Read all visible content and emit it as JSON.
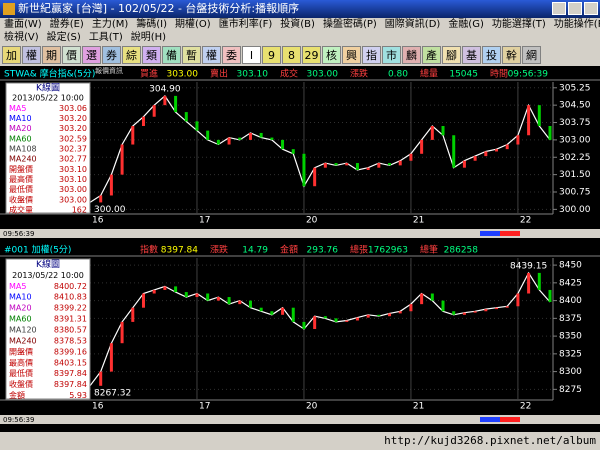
{
  "window": {
    "title": "新世紀贏家 [台灣] - 102/05/22 - 台盤技術分析:播報順序"
  },
  "menu": [
    "畫面(W)",
    "證券(E)",
    "主力(M)",
    "籌碼(I)",
    "期權(O)",
    "匯市利率(F)",
    "投資(B)",
    "操盤密碼(P)",
    "國際資訊(D)",
    "金融(G)",
    "功能選擇(T)",
    "功能操作(R)"
  ],
  "menu2": [
    "檢視(V)",
    "設定(S)",
    "工具(T)",
    "說明(H)"
  ],
  "toolbar": [
    "加",
    "權",
    "期",
    "價",
    "選",
    "券",
    "綜",
    "類",
    "備",
    "暫",
    "權",
    "委",
    "I",
    "9",
    "8",
    "29",
    "核",
    "興",
    "指",
    "市",
    "麟",
    "產",
    "腳",
    "基",
    "投",
    "幹",
    "網"
  ],
  "toolbar_caption": "報價資訊",
  "charts": [
    {
      "symbol": "STWA& 摩台指&(5分)",
      "quote": [
        {
          "label": "買進",
          "value": "303.00"
        },
        {
          "label": "賣出",
          "value": "303.10"
        },
        {
          "label": "成交",
          "value": "303.00"
        },
        {
          "label": "漲跌",
          "value": "0.80"
        },
        {
          "label": "總量",
          "value": "15045"
        },
        {
          "label": "時間",
          "value": "09:56:39"
        }
      ],
      "panel_title": "K線圖",
      "panel_date": "2013/05/22 10:00",
      "indicators": [
        {
          "label": "MA5",
          "value": "303.06"
        },
        {
          "label": "MA10",
          "value": "303.20"
        },
        {
          "label": "MA20",
          "value": "303.20"
        },
        {
          "label": "MA60",
          "value": "302.59"
        },
        {
          "label": "MA108",
          "value": "302.37"
        },
        {
          "label": "MA240",
          "value": "302.77"
        },
        {
          "label": "開盤價",
          "value": "303.10"
        },
        {
          "label": "最高價",
          "value": "303.10"
        },
        {
          "label": "最低價",
          "value": "303.00"
        },
        {
          "label": "收盤價",
          "value": "303.00"
        },
        {
          "label": "成交量",
          "value": "162"
        }
      ],
      "high_label": "304.90",
      "low_label": "300.00",
      "categories": [
        "16",
        null,
        null,
        null,
        null,
        null,
        null,
        null,
        null,
        null,
        "17",
        null,
        null,
        null,
        null,
        null,
        null,
        null,
        null,
        null,
        "20",
        null,
        null,
        null,
        null,
        null,
        null,
        null,
        null,
        null,
        "21",
        null,
        null,
        null,
        null,
        null,
        null,
        null,
        null,
        null,
        "22",
        null,
        null,
        null
      ],
      "values": [
        300.3,
        300.6,
        301.5,
        302.8,
        303.6,
        304.0,
        304.5,
        304.9,
        304.2,
        303.8,
        303.4,
        303.0,
        302.8,
        303.1,
        303.0,
        303.3,
        303.1,
        303.0,
        302.6,
        302.4,
        301.0,
        301.8,
        302.0,
        301.9,
        302.0,
        301.7,
        301.8,
        302.0,
        301.9,
        302.1,
        302.4,
        303.0,
        303.6,
        303.2,
        301.8,
        302.1,
        302.3,
        302.5,
        302.6,
        302.8,
        303.2,
        304.5,
        303.6,
        303.0
      ],
      "ylim": [
        299.8,
        305.5
      ],
      "yticks": [
        305.25,
        {
          "value": 304.5,
          "label": "304.50"
        },
        303.75,
        {
          "value": 303,
          "label": "303.00"
        },
        302.25,
        {
          "value": 301.5,
          "label": "301.50"
        },
        300.75,
        {
          "value": 300,
          "label": "300.00"
        }
      ]
    },
    {
      "symbol": "#001 加權(5分)",
      "quote": [
        {
          "label": "指數",
          "value": "8397.84"
        },
        {
          "label": "漲跌",
          "value": "14.79"
        },
        {
          "label": "金額",
          "value": "293.76"
        },
        {
          "label": "總張",
          "value": "1762963"
        },
        {
          "label": "總筆",
          "value": "286258"
        }
      ],
      "panel_title": "K線圖",
      "panel_date": "2013/05/22 10:00",
      "indicators": [
        {
          "label": "MA5",
          "value": "8400.72"
        },
        {
          "label": "MA10",
          "value": "8410.83"
        },
        {
          "label": "MA20",
          "value": "8399.22"
        },
        {
          "label": "MA60",
          "value": "8391.31"
        },
        {
          "label": "MA120",
          "value": "8380.57"
        },
        {
          "label": "MA240",
          "value": "8378.53"
        },
        {
          "label": "開盤價",
          "value": "8399.16"
        },
        {
          "label": "最高價",
          "value": "8403.15"
        },
        {
          "label": "最低價",
          "value": "8397.84"
        },
        {
          "label": "收盤價",
          "value": "8397.84"
        },
        {
          "label": "金額",
          "value": "5.93"
        }
      ],
      "high_label": "8439.15",
      "low_label": "8267.32",
      "categories": [
        "16",
        null,
        null,
        null,
        null,
        null,
        null,
        null,
        null,
        null,
        "17",
        null,
        null,
        null,
        null,
        null,
        null,
        null,
        null,
        null,
        "20",
        null,
        null,
        null,
        null,
        null,
        null,
        null,
        null,
        null,
        "21",
        null,
        null,
        null,
        null,
        null,
        null,
        null,
        null,
        null,
        "22",
        null,
        null,
        null
      ],
      "values": [
        8280,
        8300,
        8340,
        8370,
        8390,
        8410,
        8415,
        8420,
        8412,
        8405,
        8410,
        8400,
        8405,
        8395,
        8400,
        8390,
        8385,
        8380,
        8390,
        8370,
        8360,
        8378,
        8375,
        8370,
        8372,
        8376,
        8380,
        8378,
        8382,
        8385,
        8395,
        8410,
        8400,
        8385,
        8380,
        8383,
        8385,
        8388,
        8390,
        8392,
        8410,
        8439,
        8415,
        8398
      ],
      "ylim": [
        8260,
        8460
      ],
      "yticks": [
        8450,
        8425,
        8400,
        8375,
        8350,
        8325,
        8300,
        8275
      ]
    }
  ],
  "status_time": "09:56:39",
  "url": "http://kujd3268.pixnet.net/album"
}
